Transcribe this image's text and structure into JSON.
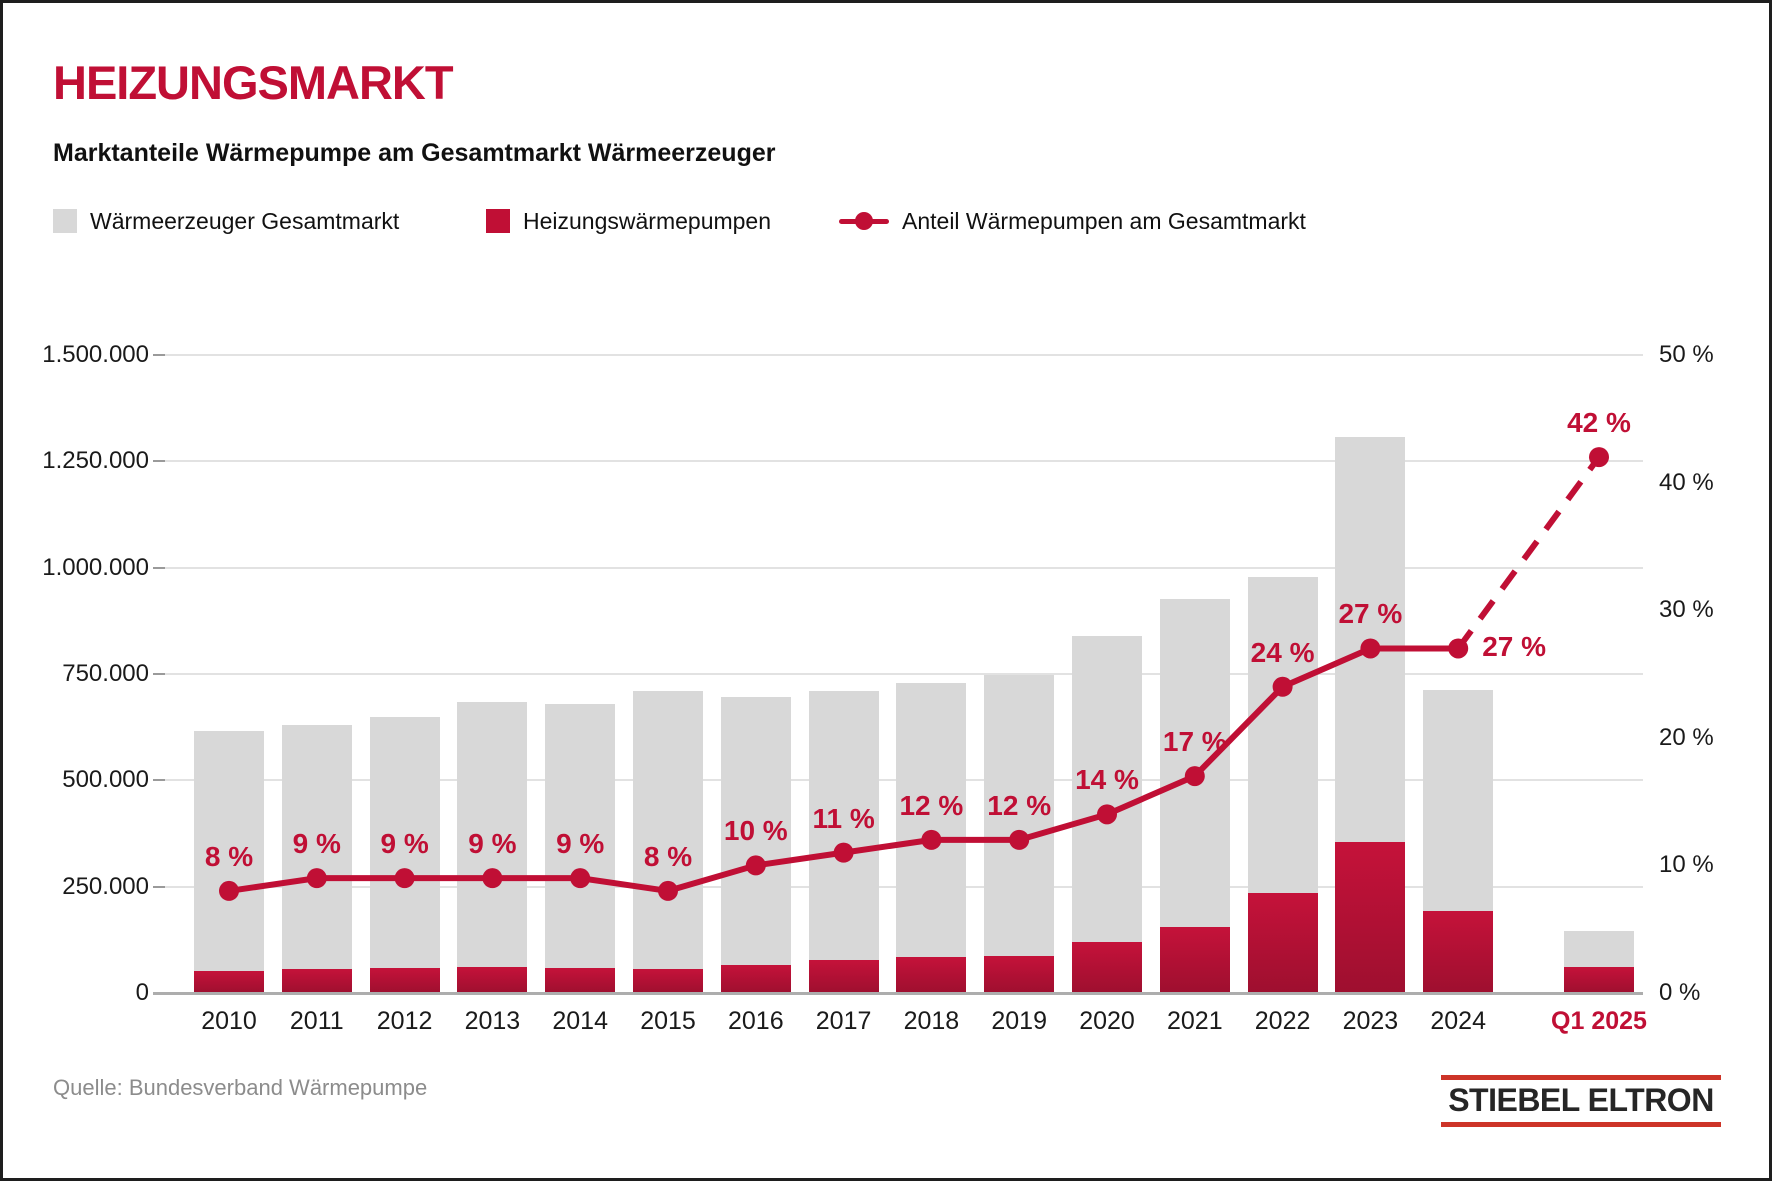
{
  "title": "HEIZUNGSMARKT",
  "subtitle": "Marktanteile Wärmepumpe am Gesamtmarkt Wärmeerzeuger",
  "legend": [
    {
      "label": "Wärmeerzeuger Gesamtmarkt",
      "swatch": "grey-square"
    },
    {
      "label": "Heizungswärmepumpen",
      "swatch": "red-square"
    },
    {
      "label": "Anteil Wärmepumpen am Gesamtmarkt",
      "swatch": "red-line-dot"
    }
  ],
  "source": "Quelle: Bundesverband Wärmepumpe",
  "logo_text": "STIEBEL ELTRON",
  "colors": {
    "accent": "#c00f35",
    "red_bar_top": "#c5123a",
    "red_bar_bottom": "#9e0f2f",
    "grey_bar": "#d8d8d8",
    "gridline": "#e2e2e2",
    "axis_line": "#adadad",
    "text": "#1a1a1a",
    "muted_text": "#8c8c8c",
    "logo_red": "#cd3428",
    "logo_text": "#262626"
  },
  "chart_data": {
    "type": "bar+line",
    "title": "Marktanteile Wärmepumpe am Gesamtmarkt Wärmeerzeuger",
    "categories": [
      "2010",
      "2011",
      "2012",
      "2013",
      "2014",
      "2015",
      "2016",
      "2017",
      "2018",
      "2019",
      "2020",
      "2021",
      "2022",
      "2023",
      "2024",
      "Q1 2025"
    ],
    "highlight_last_category": true,
    "left_axis": {
      "min": 0,
      "max": 1500000,
      "step": 250000,
      "ticks": [
        "0",
        "250.000",
        "500.000",
        "750.000",
        "1.000.000",
        "1.250.000",
        "1.500.000"
      ]
    },
    "right_axis": {
      "min": 0,
      "max": 50,
      "step": 10,
      "ticks": [
        "0 %",
        "10 %",
        "20 %",
        "30 %",
        "40 %",
        "50 %"
      ]
    },
    "grid": "horizontal-left-axis-steps",
    "legend_position": "top",
    "series": [
      {
        "name": "Wärmeerzeuger Gesamtmarkt",
        "type": "bar",
        "axis": "left",
        "color_key": "grey_bar",
        "values": [
          615000,
          630000,
          650000,
          685000,
          680000,
          710000,
          695000,
          710000,
          730000,
          747000,
          840000,
          926000,
          978000,
          1308000,
          712000,
          146000
        ]
      },
      {
        "name": "Heizungswärmepumpen",
        "type": "bar",
        "axis": "left",
        "color_key": "red_bar",
        "values": [
          51000,
          57000,
          59500,
          60000,
          58000,
          57000,
          66500,
          78000,
          84000,
          86000,
          120000,
          154000,
          236000,
          356000,
          193000,
          62000
        ]
      },
      {
        "name": "Anteil Wärmepumpen am Gesamtmarkt",
        "type": "line",
        "axis": "right",
        "unit": "%",
        "values": [
          8,
          9,
          9,
          9,
          9,
          8,
          10,
          11,
          12,
          12,
          14,
          17,
          24,
          27,
          27,
          42
        ],
        "point_labels": [
          "8 %",
          "9 %",
          "9 %",
          "9 %",
          "9 %",
          "8 %",
          "10 %",
          "11 %",
          "12 %",
          "12 %",
          "14 %",
          "17 %",
          "24 %",
          "27 %",
          "27 %",
          "42 %"
        ],
        "label_positions": [
          "above",
          "above",
          "above",
          "above",
          "above",
          "above",
          "above",
          "above",
          "above",
          "above",
          "above",
          "above",
          "above",
          "above",
          "right",
          "above"
        ],
        "dashed_last_segment": true
      }
    ]
  }
}
